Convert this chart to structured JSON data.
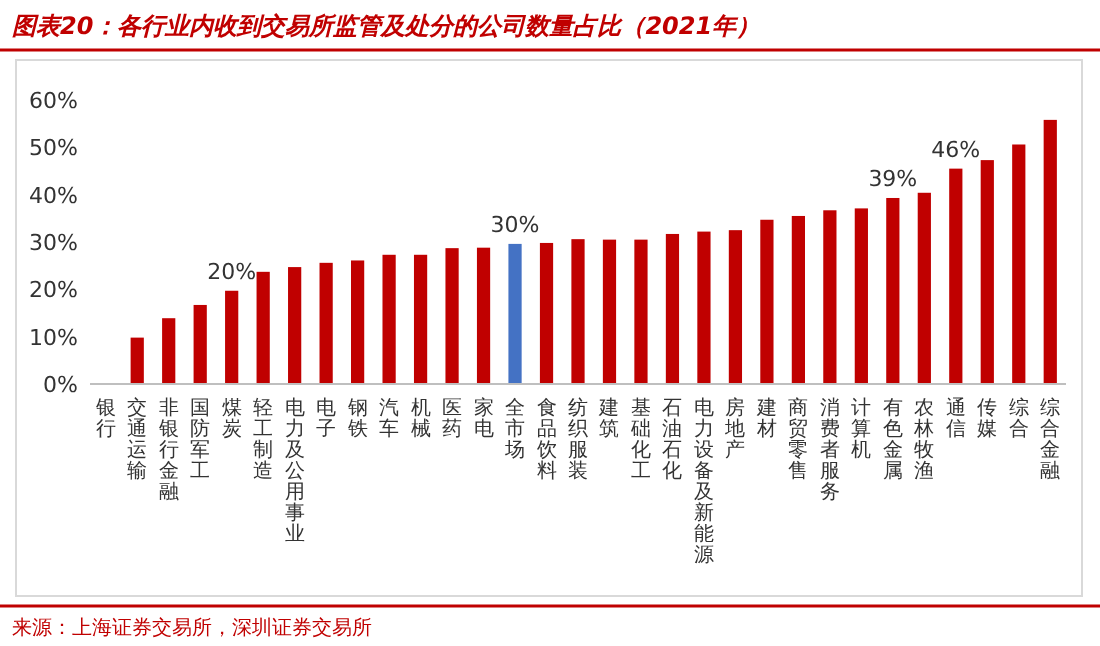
{
  "chart_data": {
    "type": "bar",
    "title": "图表20：各行业内收到交易所监管及处分的公司数量占比（2021年）",
    "categories": [
      "银行",
      "交通运输",
      "非银行金融",
      "国防军工",
      "煤炭",
      "轻工制造",
      "电力及公用事业",
      "电子",
      "钢铁",
      "汽车",
      "机械",
      "医药",
      "家电",
      "全市场",
      "食品饮料",
      "纺织服装",
      "建筑",
      "基础化工",
      "石油石化",
      "电力设备及新能源",
      "房地产",
      "建材",
      "商贸零售",
      "消费者服务",
      "计算机",
      "有色金属",
      "农林牧渔",
      "通信",
      "传媒",
      "综合",
      "综合金融"
    ],
    "values": [
      0,
      9.8,
      13.9,
      16.7,
      19.7,
      23.7,
      24.7,
      25.6,
      26.1,
      27.3,
      27.3,
      28.7,
      28.8,
      29.6,
      29.8,
      30.6,
      30.5,
      30.5,
      31.7,
      32.2,
      32.5,
      34.7,
      35.5,
      36.7,
      37.1,
      39.3,
      40.4,
      45.5,
      47.3,
      50.6,
      55.8
    ],
    "colors": [
      "#c00000",
      "#c00000",
      "#c00000",
      "#c00000",
      "#c00000",
      "#c00000",
      "#c00000",
      "#c00000",
      "#c00000",
      "#c00000",
      "#c00000",
      "#c00000",
      "#c00000",
      "#4472c4",
      "#c00000",
      "#c00000",
      "#c00000",
      "#c00000",
      "#c00000",
      "#c00000",
      "#c00000",
      "#c00000",
      "#c00000",
      "#c00000",
      "#c00000",
      "#c00000",
      "#c00000",
      "#c00000",
      "#c00000",
      "#c00000",
      "#c00000"
    ],
    "value_labels": [
      null,
      null,
      null,
      null,
      "20%",
      null,
      null,
      null,
      null,
      null,
      null,
      null,
      null,
      "30%",
      null,
      null,
      null,
      null,
      null,
      null,
      null,
      null,
      null,
      null,
      null,
      "39%",
      null,
      "46%",
      null,
      null,
      null
    ],
    "ylim": [
      0,
      60
    ],
    "yticks": [
      {
        "value": 0,
        "label": "0%"
      },
      {
        "value": 10,
        "label": "10%"
      },
      {
        "value": 20,
        "label": "20%"
      },
      {
        "value": 30,
        "label": "30%"
      },
      {
        "value": 40,
        "label": "40%"
      },
      {
        "value": 50,
        "label": "50%"
      },
      {
        "value": 60,
        "label": "60%"
      }
    ],
    "grid": false,
    "annotations": [
      "来源：上海证券交易所，深圳证券交易所"
    ]
  }
}
